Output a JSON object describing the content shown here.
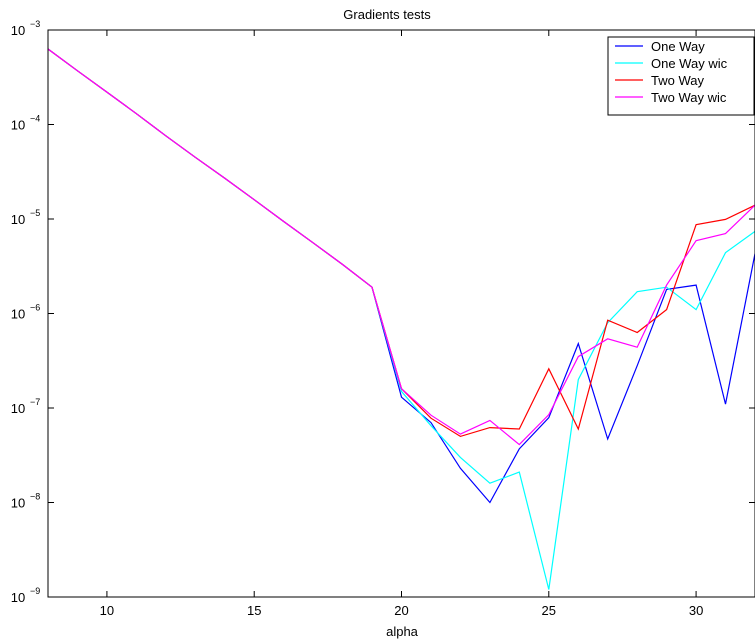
{
  "chart_data": {
    "type": "line",
    "title": "Gradients tests",
    "xlabel": "alpha",
    "ylabel": "",
    "xlim": [
      8,
      32
    ],
    "ylim": [
      1e-09,
      0.001
    ],
    "yscale": "log",
    "grid": false,
    "legend_position": "top-right",
    "xticks": [
      {
        "value": 10,
        "label": "10"
      },
      {
        "value": 15,
        "label": "15"
      },
      {
        "value": 20,
        "label": "20"
      },
      {
        "value": 25,
        "label": "25"
      },
      {
        "value": 30,
        "label": "30"
      }
    ],
    "yticks": [
      {
        "value": 1e-09,
        "base": "10",
        "exp": "−9"
      },
      {
        "value": 1e-08,
        "base": "10",
        "exp": "−8"
      },
      {
        "value": 1e-07,
        "base": "10",
        "exp": "−7"
      },
      {
        "value": 1e-06,
        "base": "10",
        "exp": "−6"
      },
      {
        "value": 1e-05,
        "base": "10",
        "exp": "−5"
      },
      {
        "value": 0.0001,
        "base": "10",
        "exp": "−4"
      },
      {
        "value": 0.001,
        "base": "10",
        "exp": "−3"
      }
    ],
    "x": [
      8,
      9,
      10,
      11,
      12,
      13,
      14,
      15,
      16,
      17,
      18,
      19,
      20,
      21,
      22,
      23,
      24,
      25,
      26,
      27,
      28,
      29,
      30,
      31,
      32
    ],
    "series": [
      {
        "name": "One Way",
        "color": "#0000ff",
        "values": [
          0.00063,
          0.00037,
          0.00022,
          0.00013,
          7.6e-05,
          4.5e-05,
          2.7e-05,
          1.6e-05,
          9.4e-06,
          5.6e-06,
          3.3e-06,
          1.9e-06,
          1.3e-07,
          7e-08,
          2.3e-08,
          1e-08,
          3.7e-08,
          7.9e-08,
          4.8e-07,
          4.7e-08,
          2.8e-07,
          1.8e-06,
          2e-06,
          1.1e-07,
          4.3e-06
        ]
      },
      {
        "name": "One Way wic",
        "color": "#00ffff",
        "values": [
          0.00063,
          0.00037,
          0.00022,
          0.00013,
          7.6e-05,
          4.5e-05,
          2.7e-05,
          1.6e-05,
          9.4e-06,
          5.6e-06,
          3.3e-06,
          1.9e-06,
          1.5e-07,
          6.5e-08,
          3e-08,
          1.6e-08,
          2.1e-08,
          1.2e-09,
          2e-07,
          8e-07,
          1.7e-06,
          1.9e-06,
          1.1e-06,
          4.4e-06,
          7.4e-06
        ]
      },
      {
        "name": "Two Way",
        "color": "#ff0000",
        "values": [
          0.00063,
          0.00037,
          0.00022,
          0.00013,
          7.6e-05,
          4.5e-05,
          2.7e-05,
          1.6e-05,
          9.4e-06,
          5.6e-06,
          3.3e-06,
          1.9e-06,
          1.6e-07,
          7.8e-08,
          5e-08,
          6.2e-08,
          6e-08,
          2.6e-07,
          6e-08,
          8.5e-07,
          6.3e-07,
          1.1e-06,
          8.7e-06,
          9.9e-06,
          1.4e-05
        ]
      },
      {
        "name": "Two Way wic",
        "color": "#ff00ff",
        "values": [
          0.00063,
          0.00037,
          0.00022,
          0.00013,
          7.6e-05,
          4.5e-05,
          2.7e-05,
          1.6e-05,
          9.4e-06,
          5.6e-06,
          3.3e-06,
          1.9e-06,
          1.6e-07,
          8.4e-08,
          5.3e-08,
          7.4e-08,
          4.1e-08,
          8.5e-08,
          3.5e-07,
          5.4e-07,
          4.4e-07,
          2e-06,
          5.9e-06,
          7e-06,
          1.4e-05
        ]
      }
    ]
  }
}
